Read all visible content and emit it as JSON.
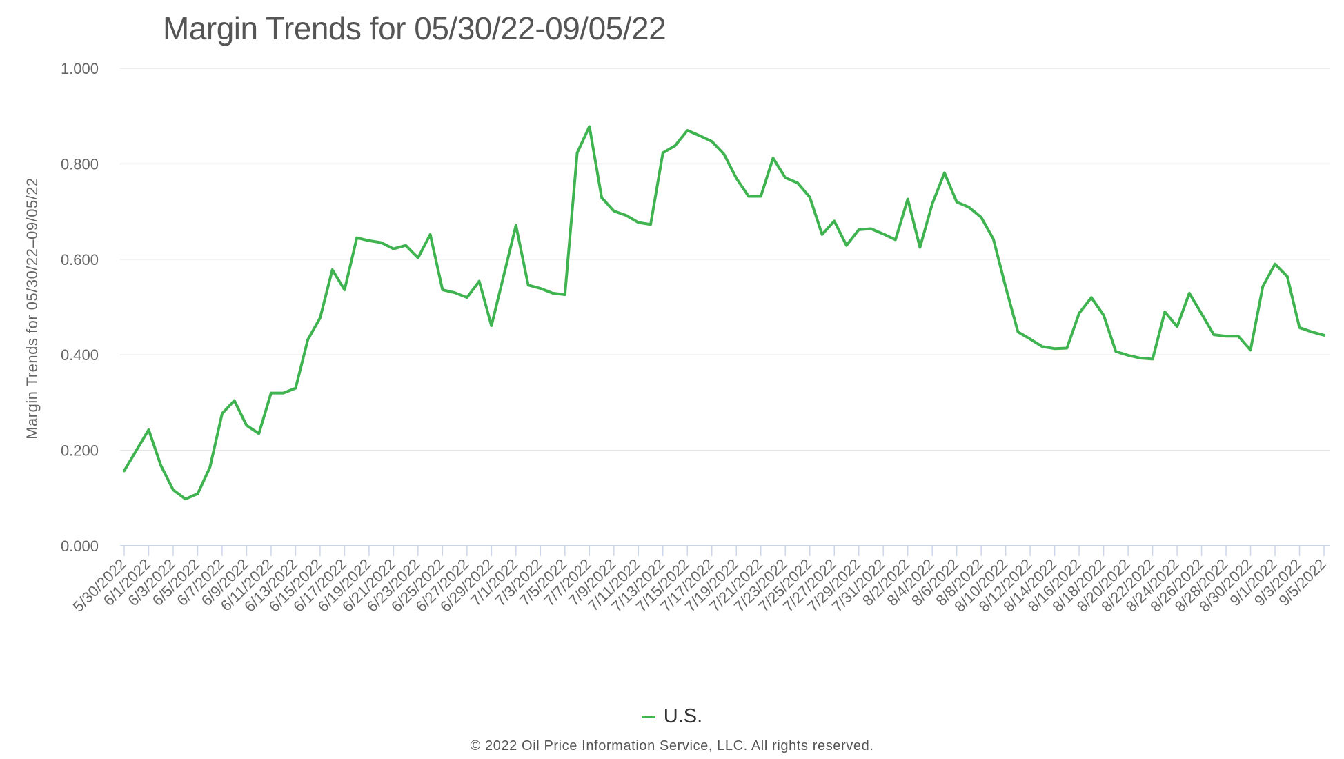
{
  "title": "Margin Trends for 05/30/22-09/05/22",
  "y_axis_title": "Margin Trends for 05/30/22–09/05/22",
  "legend": [
    {
      "label": "U.S.",
      "color": "#3fb34f"
    }
  ],
  "footer": "© 2022 Oil Price Information Service, LLC. All rights reserved.",
  "colors": {
    "line": "#3fb34f",
    "grid": "#e6e6e6",
    "axis": "#ccd6eb",
    "text": "#555555"
  },
  "chart_data": {
    "type": "line",
    "title": "Margin Trends for 05/30/22-09/05/22",
    "xlabel": "",
    "ylabel": "Margin Trends for 05/30/22–09/05/22",
    "ylim": [
      0,
      1
    ],
    "yticks": [
      "0.000",
      "0.200",
      "0.400",
      "0.600",
      "0.800",
      "1.000"
    ],
    "grid": true,
    "legend_position": "bottom-center",
    "xtick_labels": [
      "5/30/2022",
      "6/1/2022",
      "6/3/2022",
      "6/5/2022",
      "6/7/2022",
      "6/9/2022",
      "6/11/2022",
      "6/13/2022",
      "6/15/2022",
      "6/17/2022",
      "6/19/2022",
      "6/21/2022",
      "6/23/2022",
      "6/25/2022",
      "6/27/2022",
      "6/29/2022",
      "7/1/2022",
      "7/3/2022",
      "7/5/2022",
      "7/7/2022",
      "7/9/2022",
      "7/11/2022",
      "7/13/2022",
      "7/15/2022",
      "7/17/2022",
      "7/19/2022",
      "7/21/2022",
      "7/23/2022",
      "7/25/2022",
      "7/27/2022",
      "7/29/2022",
      "7/31/2022",
      "8/2/2022",
      "8/4/2022",
      "8/6/2022",
      "8/8/2022",
      "8/10/2022",
      "8/12/2022",
      "8/14/2022",
      "8/16/2022",
      "8/18/2022",
      "8/20/2022",
      "8/22/2022",
      "8/24/2022",
      "8/26/2022",
      "8/28/2022",
      "8/30/2022",
      "9/1/2022",
      "9/3/2022",
      "9/5/2022"
    ],
    "x": [
      "5/30/2022",
      "5/31/2022",
      "6/1/2022",
      "6/2/2022",
      "6/3/2022",
      "6/4/2022",
      "6/5/2022",
      "6/6/2022",
      "6/7/2022",
      "6/8/2022",
      "6/9/2022",
      "6/10/2022",
      "6/11/2022",
      "6/12/2022",
      "6/13/2022",
      "6/14/2022",
      "6/15/2022",
      "6/16/2022",
      "6/17/2022",
      "6/18/2022",
      "6/19/2022",
      "6/20/2022",
      "6/21/2022",
      "6/22/2022",
      "6/23/2022",
      "6/24/2022",
      "6/25/2022",
      "6/26/2022",
      "6/27/2022",
      "6/28/2022",
      "6/29/2022",
      "6/30/2022",
      "7/1/2022",
      "7/2/2022",
      "7/3/2022",
      "7/4/2022",
      "7/5/2022",
      "7/6/2022",
      "7/7/2022",
      "7/8/2022",
      "7/9/2022",
      "7/10/2022",
      "7/11/2022",
      "7/12/2022",
      "7/13/2022",
      "7/14/2022",
      "7/15/2022",
      "7/16/2022",
      "7/17/2022",
      "7/18/2022",
      "7/19/2022",
      "7/20/2022",
      "7/21/2022",
      "7/22/2022",
      "7/23/2022",
      "7/24/2022",
      "7/25/2022",
      "7/26/2022",
      "7/27/2022",
      "7/28/2022",
      "7/29/2022",
      "7/30/2022",
      "7/31/2022",
      "8/1/2022",
      "8/2/2022",
      "8/3/2022",
      "8/4/2022",
      "8/5/2022",
      "8/6/2022",
      "8/7/2022",
      "8/8/2022",
      "8/9/2022",
      "8/10/2022",
      "8/11/2022",
      "8/12/2022",
      "8/13/2022",
      "8/14/2022",
      "8/15/2022",
      "8/16/2022",
      "8/17/2022",
      "8/18/2022",
      "8/19/2022",
      "8/20/2022",
      "8/21/2022",
      "8/22/2022",
      "8/23/2022",
      "8/24/2022",
      "8/25/2022",
      "8/26/2022",
      "8/27/2022",
      "8/28/2022",
      "8/29/2022",
      "8/30/2022",
      "8/31/2022",
      "9/1/2022",
      "9/2/2022",
      "9/3/2022",
      "9/4/2022",
      "9/5/2022"
    ],
    "series": [
      {
        "name": "U.S.",
        "color": "#3fb34f",
        "values": [
          0.157,
          0.2,
          0.243,
          0.168,
          0.117,
          0.098,
          0.109,
          0.164,
          0.277,
          0.304,
          0.252,
          0.235,
          0.32,
          0.32,
          0.33,
          0.432,
          0.477,
          0.578,
          0.536,
          0.645,
          0.639,
          0.635,
          0.622,
          0.629,
          0.603,
          0.652,
          0.536,
          0.53,
          0.52,
          0.554,
          0.461,
          0.566,
          0.671,
          0.546,
          0.539,
          0.529,
          0.526,
          0.823,
          0.878,
          0.729,
          0.701,
          0.692,
          0.677,
          0.673,
          0.823,
          0.838,
          0.87,
          0.859,
          0.847,
          0.82,
          0.77,
          0.732,
          0.732,
          0.812,
          0.771,
          0.76,
          0.73,
          0.652,
          0.68,
          0.629,
          0.662,
          0.664,
          0.653,
          0.641,
          0.726,
          0.625,
          0.716,
          0.781,
          0.72,
          0.709,
          0.688,
          0.642,
          0.542,
          0.448,
          0.433,
          0.417,
          0.413,
          0.414,
          0.487,
          0.52,
          0.483,
          0.407,
          0.399,
          0.393,
          0.391,
          0.49,
          0.459,
          0.529,
          0.486,
          0.442,
          0.439,
          0.439,
          0.41,
          0.543,
          0.59,
          0.564,
          0.457,
          0.448,
          0.441
        ]
      }
    ]
  }
}
